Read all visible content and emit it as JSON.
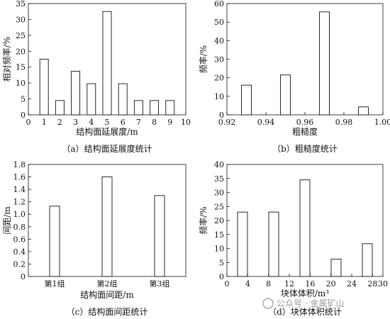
{
  "chart_data": [
    {
      "type": "bar",
      "id": "a",
      "x": [
        1,
        2,
        3,
        4,
        5,
        6,
        7,
        8,
        9
      ],
      "values": [
        17.5,
        4.5,
        13.7,
        9.8,
        32.5,
        9.8,
        4.5,
        4.5,
        4.5
      ],
      "xlim": [
        0,
        10
      ],
      "ylim": [
        0,
        35
      ],
      "xticks": [
        "0",
        "1",
        "2",
        "3",
        "4",
        "5",
        "6",
        "7",
        "8",
        "9",
        "10"
      ],
      "yticks": [
        "0",
        "5",
        "10",
        "15",
        "20",
        "25",
        "30",
        "35"
      ],
      "xlabel": "结构面延展度/m",
      "ylabel": "相对频率/%",
      "caption": "（a）结构面延展度统计"
    },
    {
      "type": "bar",
      "id": "b",
      "x": [
        0.93,
        0.95,
        0.97,
        0.99
      ],
      "values": [
        16,
        21.5,
        55.5,
        4.3
      ],
      "xlim": [
        0.92,
        1.0
      ],
      "ylim": [
        0,
        60
      ],
      "xticks": [
        "0.92",
        "0.94",
        "0.96",
        "0.98",
        "1.00"
      ],
      "yticks": [
        "0",
        "10",
        "20",
        "30",
        "40",
        "50",
        "60"
      ],
      "xlabel": "粗糙度",
      "ylabel": "频率/%",
      "caption": "（b）粗糙度统计"
    },
    {
      "type": "bar",
      "id": "c",
      "categories": [
        "第1组",
        "第2组",
        "第3组"
      ],
      "values": [
        1.13,
        1.6,
        1.3
      ],
      "ylim": [
        0,
        1.8
      ],
      "yticks": [
        "0",
        "0.2",
        "0.4",
        "0.6",
        "0.8",
        "1.0",
        "1.2",
        "1.4",
        "1.6",
        "1.8"
      ],
      "xlabel": "结构面间距/m",
      "ylabel": "间距/m",
      "caption": "（c）结构面间距统计"
    },
    {
      "type": "bar",
      "id": "d",
      "x": [
        3,
        9,
        15,
        21,
        27
      ],
      "values": [
        23,
        23,
        34.5,
        6.2,
        11.7
      ],
      "xlim": [
        0,
        30
      ],
      "ylim": [
        0,
        40
      ],
      "xticks": [
        "0",
        "4",
        "8",
        "12",
        "16",
        "20",
        "24",
        "28",
        "30"
      ],
      "xtick_values": [
        0,
        4,
        8,
        12,
        16,
        20,
        24,
        28,
        30
      ],
      "yticks": [
        "0",
        "5",
        "10",
        "15",
        "20",
        "25",
        "30",
        "35",
        "40"
      ],
      "xlabel": "块体体积/m³",
      "ylabel": "频率/%",
      "caption": "（d）块体体积统计"
    }
  ],
  "watermark": "公众号 · 金属矿山"
}
